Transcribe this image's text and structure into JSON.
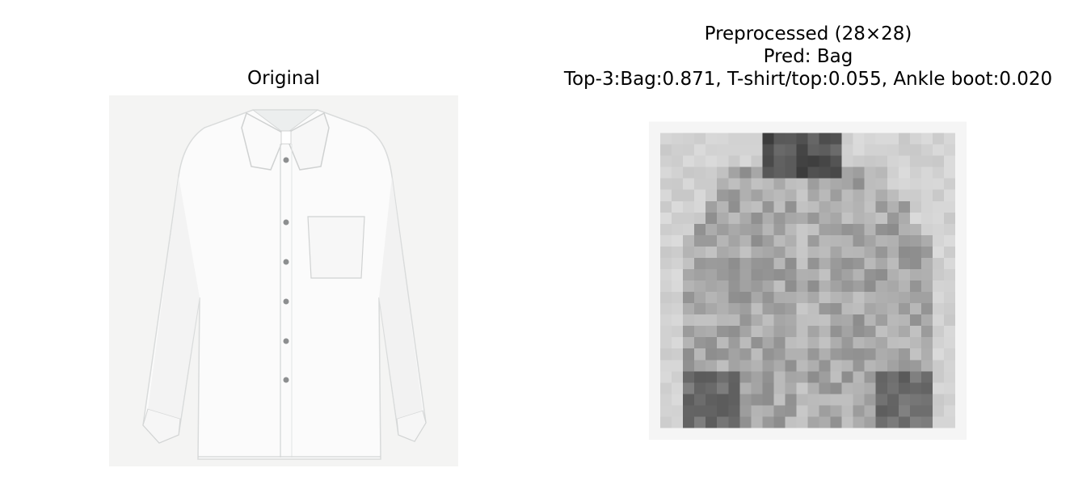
{
  "figure": {
    "panels": [
      {
        "title": "Original"
      },
      {
        "title_lines": [
          "Preprocessed (28×28)",
          "Pred: Bag",
          "Top-3:Bag:0.871, T-shirt/top:0.055, Ankle boot:0.020"
        ],
        "prediction": "Bag",
        "top3": [
          {
            "label": "Bag",
            "score": 0.871
          },
          {
            "label": "T-shirt/top",
            "score": 0.055
          },
          {
            "label": "Ankle boot",
            "score": 0.02
          }
        ]
      }
    ]
  }
}
